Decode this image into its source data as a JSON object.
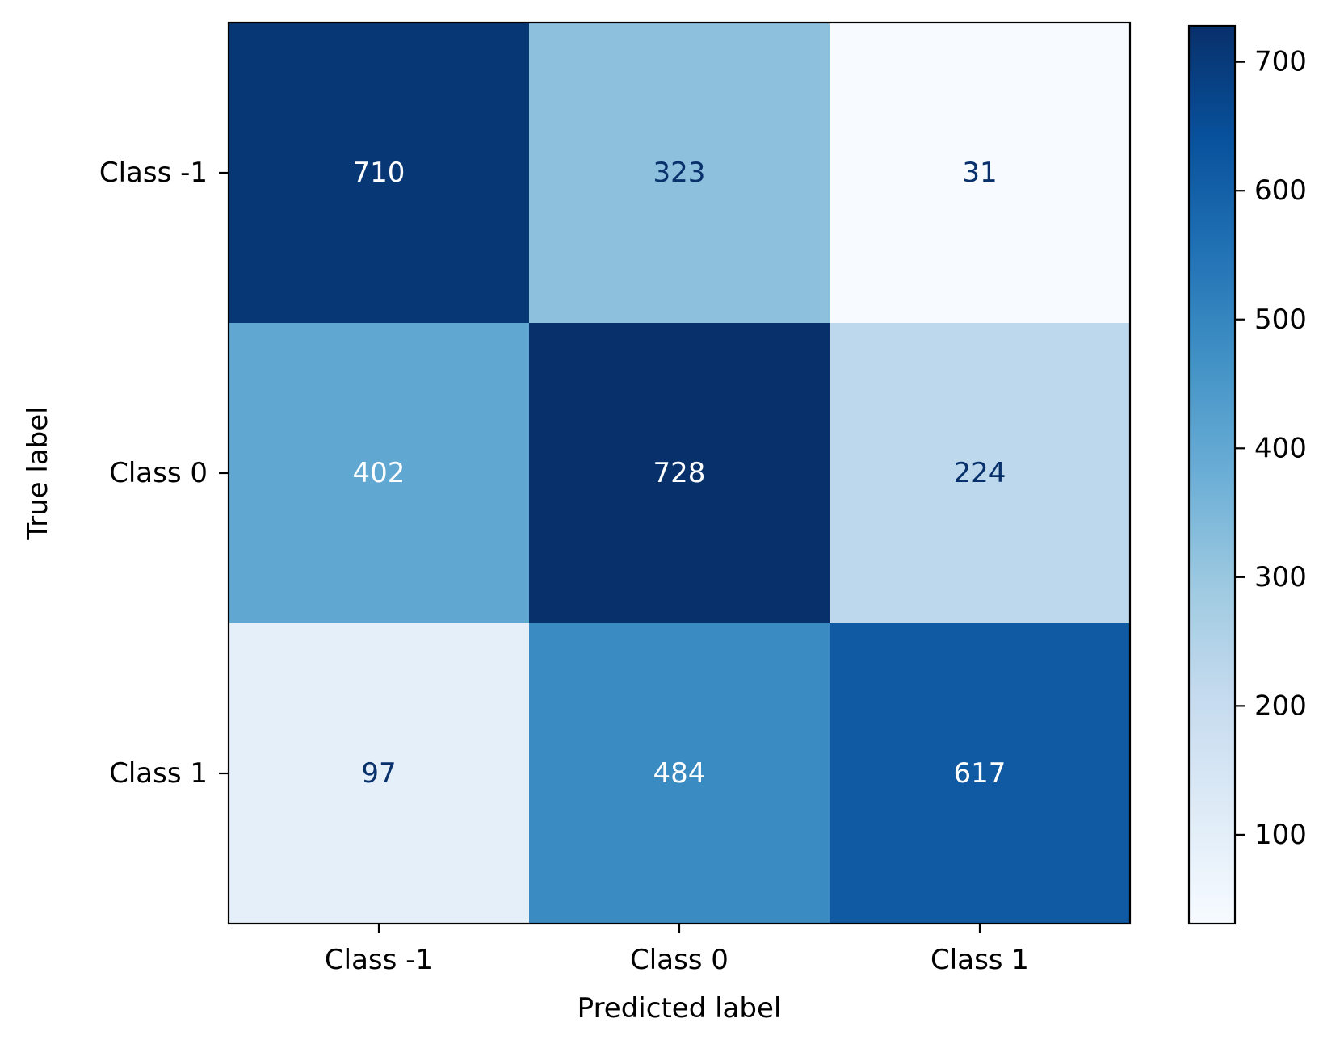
{
  "chart_data": {
    "type": "heatmap",
    "title": "",
    "xlabel": "Predicted label",
    "ylabel": "True label",
    "x_categories": [
      "Class -1",
      "Class 0",
      "Class 1"
    ],
    "y_categories": [
      "Class -1",
      "Class 0",
      "Class 1"
    ],
    "matrix": [
      [
        710,
        323,
        31
      ],
      [
        402,
        728,
        224
      ],
      [
        97,
        484,
        617
      ]
    ],
    "colormap": "Blues",
    "color_range": [
      31,
      728
    ],
    "colorbar_ticks": [
      100,
      200,
      300,
      400,
      500,
      600,
      700
    ],
    "colorbar_tick_labels": [
      "100",
      "200",
      "300",
      "400",
      "500",
      "600",
      "700"
    ],
    "colors": {
      "text_dark": "#08306b",
      "text_light": "#ffffff",
      "axis": "#000000"
    }
  }
}
